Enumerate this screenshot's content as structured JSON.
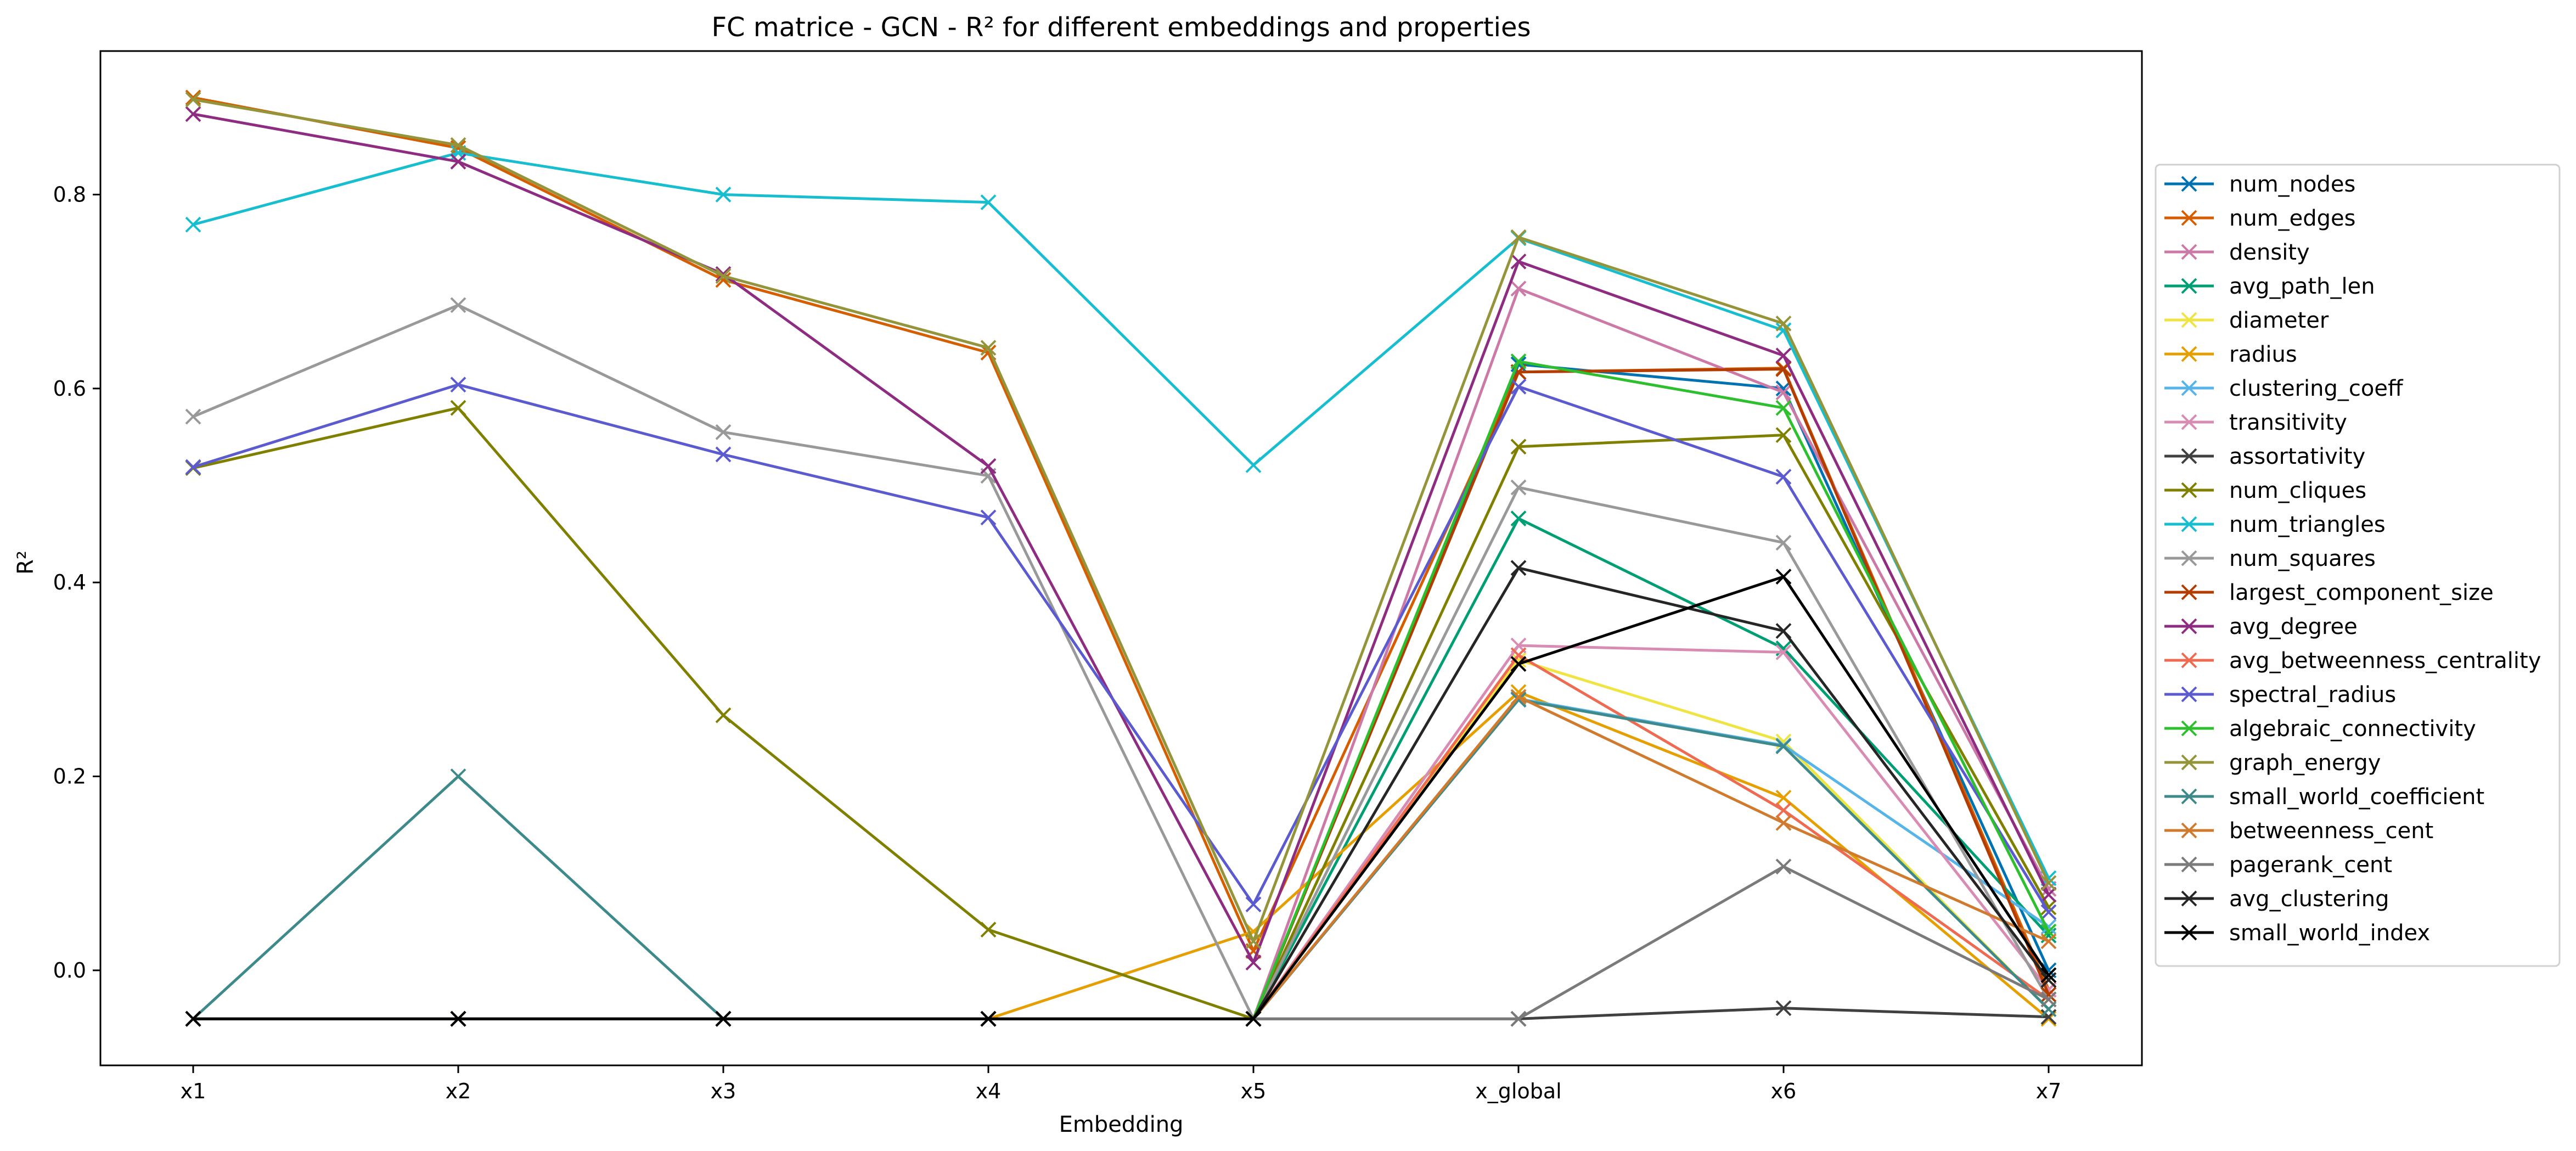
{
  "chart_data": {
    "type": "line",
    "title": "FC matrice - GCN - R² for different embeddings and properties",
    "xlabel": "Embedding",
    "ylabel": "R²",
    "categories": [
      "x1",
      "x2",
      "x3",
      "x4",
      "x5",
      "x_global",
      "x6",
      "x7"
    ],
    "ylim": [
      -0.098,
      0.948
    ],
    "yticks": [
      "0.0",
      "0.2",
      "0.4",
      "0.6",
      "0.8"
    ],
    "yticks_values": [
      0.0,
      0.2,
      0.4,
      0.6,
      0.8
    ],
    "grid": false,
    "legend_position": "right",
    "marker": "x",
    "series": [
      {
        "name": "num_nodes",
        "color": "#0072B2",
        "values": [
          -0.05,
          -0.05,
          -0.05,
          -0.05,
          -0.05,
          0.625,
          0.6,
          0.0
        ]
      },
      {
        "name": "num_edges",
        "color": "#D55E00",
        "values": [
          0.9,
          0.848,
          0.712,
          0.637,
          0.02,
          0.617,
          0.621,
          -0.02
        ]
      },
      {
        "name": "density",
        "color": "#CC79A7",
        "values": [
          -0.05,
          -0.05,
          -0.05,
          -0.05,
          -0.05,
          0.703,
          0.596,
          0.084
        ]
      },
      {
        "name": "avg_path_len",
        "color": "#009E73",
        "values": [
          -0.05,
          -0.05,
          -0.05,
          -0.05,
          -0.05,
          0.466,
          0.332,
          0.036
        ]
      },
      {
        "name": "diameter",
        "color": "#F0E442",
        "values": [
          -0.05,
          -0.05,
          -0.05,
          -0.05,
          -0.05,
          0.32,
          0.236,
          -0.04
        ]
      },
      {
        "name": "radius",
        "color": "#E69F00",
        "values": [
          -0.05,
          -0.05,
          -0.05,
          -0.05,
          0.04,
          0.287,
          0.178,
          -0.05
        ]
      },
      {
        "name": "clustering_coeff",
        "color": "#56B4E9",
        "values": [
          -0.05,
          -0.05,
          -0.05,
          -0.05,
          -0.05,
          0.28,
          0.232,
          0.045
        ]
      },
      {
        "name": "transitivity",
        "color": "#D98CB3",
        "values": [
          -0.05,
          -0.05,
          -0.05,
          -0.05,
          -0.05,
          0.335,
          0.328,
          -0.02
        ]
      },
      {
        "name": "assortativity",
        "color": "#404040",
        "values": [
          -0.05,
          -0.05,
          -0.05,
          -0.05,
          -0.05,
          -0.05,
          -0.039,
          -0.048
        ]
      },
      {
        "name": "num_cliques",
        "color": "#7F7F00",
        "values": [
          0.518,
          0.58,
          0.263,
          0.042,
          -0.05,
          0.54,
          0.552,
          0.065
        ]
      },
      {
        "name": "num_triangles",
        "color": "#17BECF",
        "values": [
          0.769,
          0.843,
          0.8,
          0.792,
          0.521,
          0.755,
          0.66,
          0.095
        ]
      },
      {
        "name": "num_squares",
        "color": "#999999",
        "values": [
          0.571,
          0.686,
          0.555,
          0.51,
          -0.05,
          0.498,
          0.441,
          -0.03
        ]
      },
      {
        "name": "largest_component_size",
        "color": "#B33C00",
        "values": [
          -0.05,
          -0.05,
          -0.05,
          -0.05,
          -0.05,
          0.617,
          0.62,
          -0.025
        ]
      },
      {
        "name": "avg_degree",
        "color": "#8E2C82",
        "values": [
          0.883,
          0.834,
          0.718,
          0.52,
          0.008,
          0.731,
          0.634,
          0.078
        ]
      },
      {
        "name": "avg_betweenness_centrality",
        "color": "#EE6A50",
        "values": [
          -0.05,
          -0.05,
          -0.05,
          -0.05,
          -0.05,
          0.325,
          0.165,
          -0.03
        ]
      },
      {
        "name": "spectral_radius",
        "color": "#5B5BCF",
        "values": [
          0.519,
          0.604,
          0.532,
          0.467,
          0.068,
          0.602,
          0.509,
          0.06
        ]
      },
      {
        "name": "algebraic_connectivity",
        "color": "#2DBF2D",
        "values": [
          -0.05,
          -0.05,
          -0.05,
          -0.05,
          -0.05,
          0.628,
          0.58,
          0.04
        ]
      },
      {
        "name": "graph_energy",
        "color": "#94943A",
        "values": [
          0.898,
          0.851,
          0.716,
          0.642,
          0.03,
          0.756,
          0.667,
          0.09
        ]
      },
      {
        "name": "small_world_coefficient",
        "color": "#3E8A8A",
        "values": [
          -0.05,
          0.2,
          -0.05,
          -0.05,
          -0.05,
          0.279,
          0.231,
          -0.04
        ]
      },
      {
        "name": "betweenness_cent",
        "color": "#D07A2D",
        "values": [
          -0.05,
          -0.05,
          -0.05,
          -0.05,
          -0.05,
          0.282,
          0.152,
          0.03
        ]
      },
      {
        "name": "pagerank_cent",
        "color": "#7A7A7A",
        "values": [
          -0.05,
          -0.05,
          -0.05,
          -0.05,
          -0.05,
          -0.05,
          0.107,
          -0.03
        ]
      },
      {
        "name": "avg_clustering",
        "color": "#262626",
        "values": [
          -0.05,
          -0.05,
          -0.05,
          -0.05,
          -0.05,
          0.415,
          0.35,
          -0.01
        ]
      },
      {
        "name": "small_world_index",
        "color": "#000000",
        "values": [
          -0.05,
          -0.05,
          -0.05,
          -0.05,
          -0.05,
          0.316,
          0.406,
          -0.005
        ]
      }
    ]
  }
}
